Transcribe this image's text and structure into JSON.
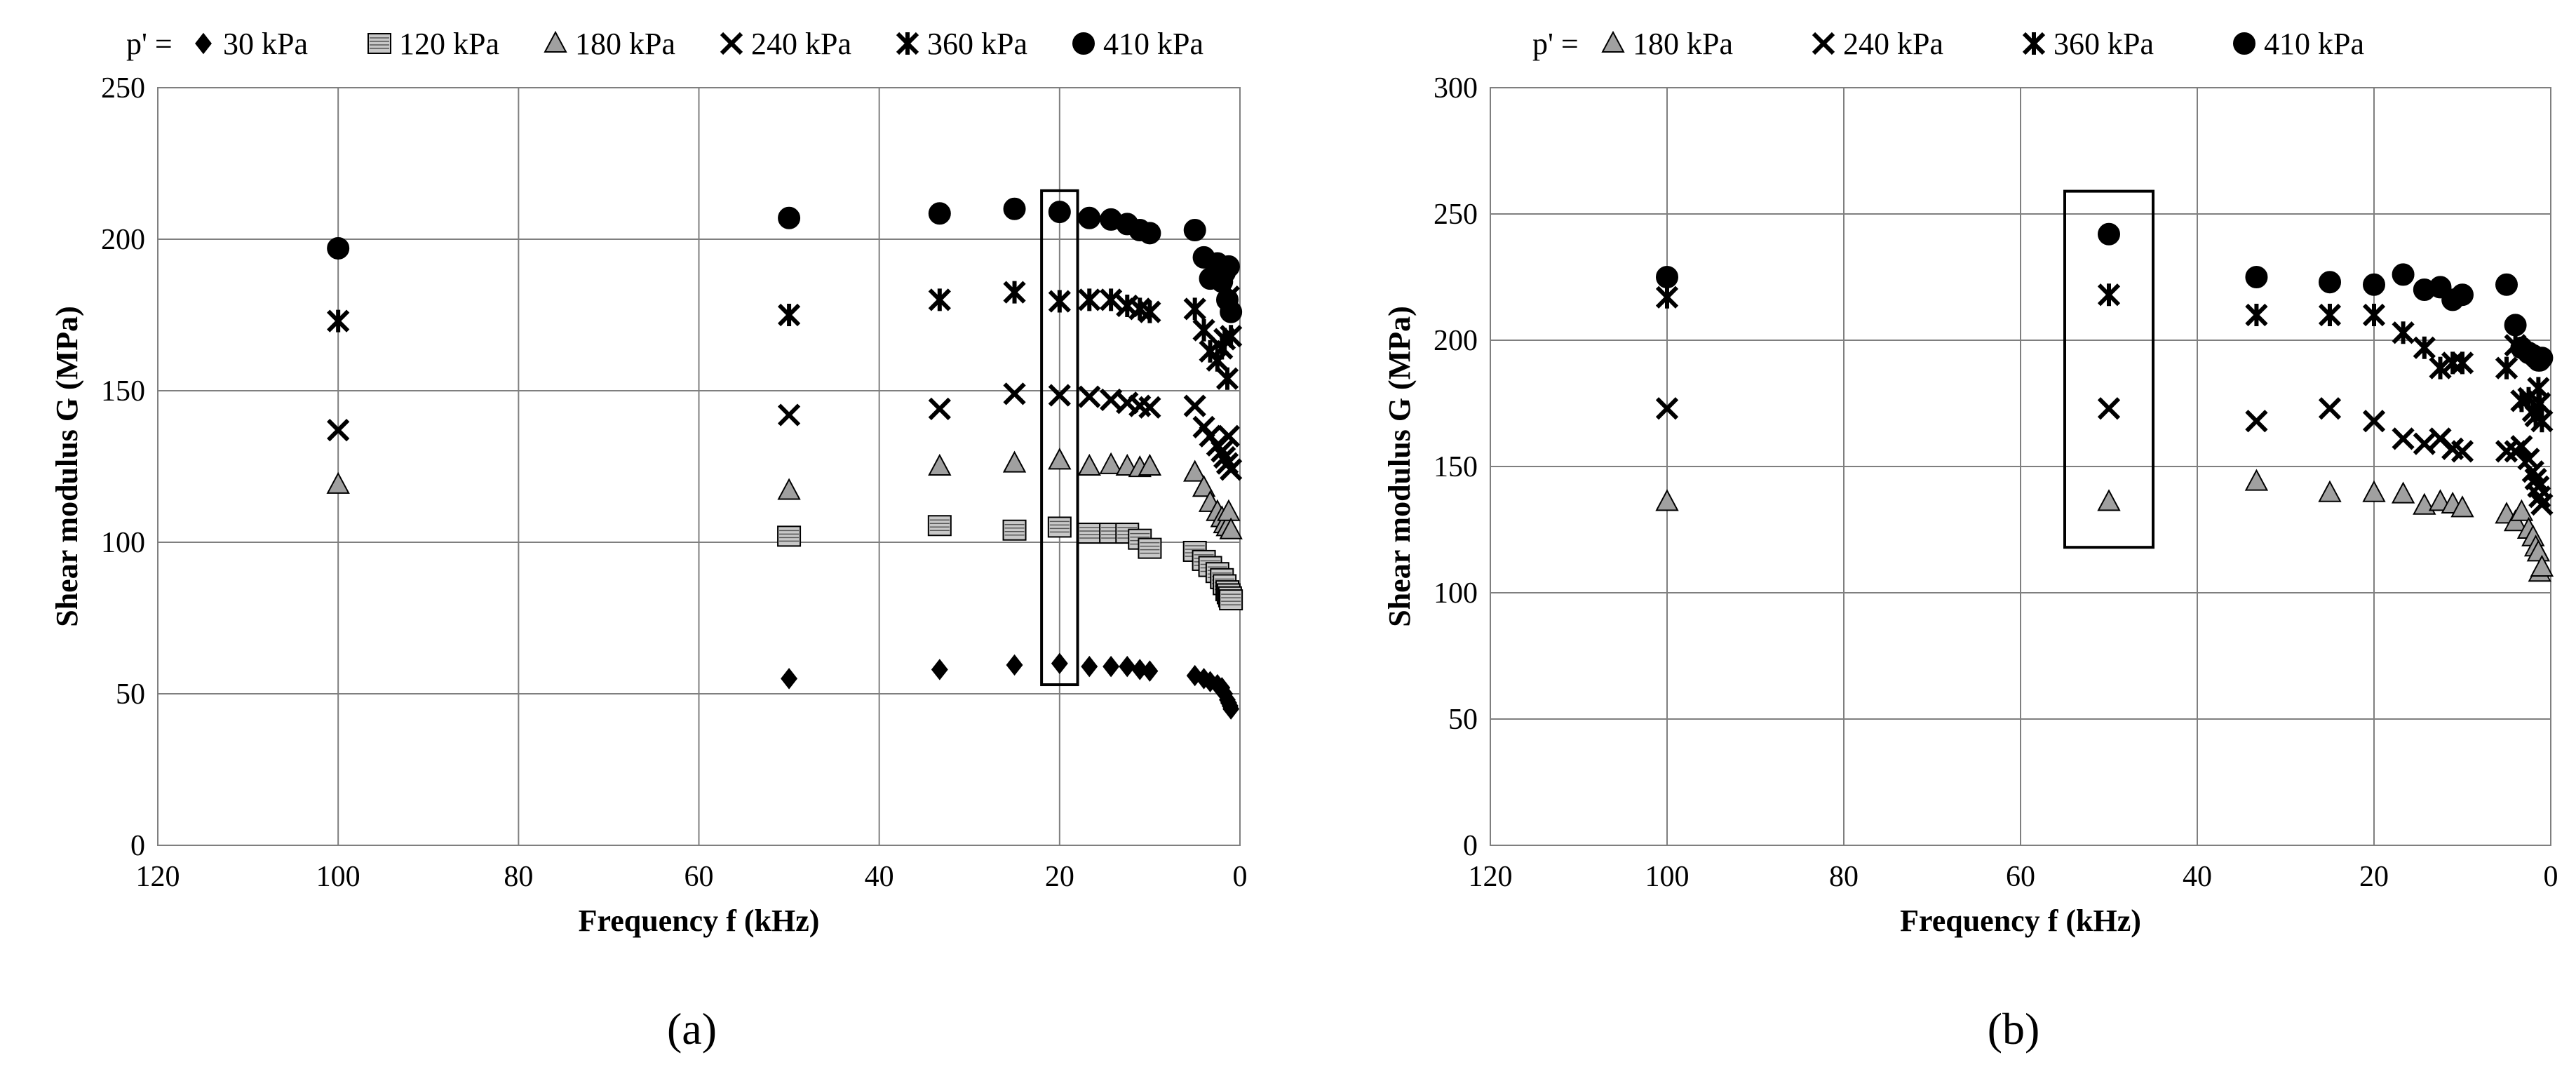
{
  "chart_data": [
    {
      "type": "scatter",
      "panel_label": "(a)",
      "legend_prefix": "p' =",
      "xlabel": "Frequency f (kHz)",
      "ylabel": "Shear modulus G (MPa)",
      "xlim": [
        120,
        0
      ],
      "ylim": [
        0,
        250
      ],
      "x_reversed": true,
      "xticks": [
        120,
        100,
        80,
        60,
        40,
        20,
        0
      ],
      "yticks": [
        0,
        50,
        100,
        150,
        200,
        250
      ],
      "grid": true,
      "legend_position": "top",
      "highlight_box_x": [
        22,
        18
      ],
      "highlight_box_y": [
        53,
        216
      ],
      "series": [
        {
          "name": "30 kPa",
          "marker": "diamond",
          "color": "#000000",
          "x": [
            50,
            33.3,
            25,
            20,
            16.7,
            14.3,
            12.5,
            11.1,
            10,
            5,
            4,
            3.3,
            2.5,
            2,
            1.7,
            1.4,
            1.25,
            1.1,
            1
          ],
          "y": [
            55,
            58,
            59.5,
            60,
            59,
            59,
            59,
            58,
            57.5,
            56,
            55,
            54,
            53,
            52,
            50,
            48,
            47,
            46,
            45
          ]
        },
        {
          "name": "120 kPa",
          "marker": "square",
          "color": "#c8c8c8",
          "x": [
            50,
            33.3,
            25,
            20,
            16.7,
            14.3,
            12.5,
            11.1,
            10,
            5,
            4,
            3.3,
            2.5,
            2,
            1.7,
            1.4,
            1.25,
            1.1,
            1
          ],
          "y": [
            102,
            105.5,
            104,
            105,
            103,
            103,
            103,
            101,
            98,
            97,
            94,
            92,
            90,
            88,
            86,
            84,
            83,
            82,
            81
          ]
        },
        {
          "name": "180 kPa",
          "marker": "triangle",
          "color": "#a0a0a0",
          "x": [
            100,
            50,
            33.3,
            25,
            20,
            16.7,
            14.3,
            12.5,
            11.1,
            10,
            5,
            4,
            3.3,
            2.5,
            2,
            1.7,
            1.4,
            1.25,
            1
          ],
          "y": [
            119,
            117,
            125,
            126,
            127,
            125,
            125.5,
            125,
            124.5,
            125,
            123,
            118,
            113,
            110,
            108,
            106,
            105,
            110,
            104
          ]
        },
        {
          "name": "240 kPa",
          "marker": "x",
          "color": "#000000",
          "x": [
            100,
            50,
            33.3,
            25,
            20,
            16.7,
            14.3,
            12.5,
            11.1,
            10,
            5,
            4,
            3.3,
            2.5,
            2,
            1.7,
            1.4,
            1.25,
            1
          ],
          "y": [
            137,
            142,
            144,
            149,
            148.5,
            148,
            147,
            146,
            145,
            144.5,
            145,
            138,
            135,
            132,
            130,
            128,
            126,
            135,
            124
          ]
        },
        {
          "name": "360 kPa",
          "marker": "asterisk",
          "color": "#000000",
          "x": [
            100,
            50,
            33.3,
            25,
            20,
            16.7,
            14.3,
            12.5,
            11.1,
            10,
            5,
            4,
            3.3,
            2.5,
            2,
            1.7,
            1.4,
            1.25,
            1
          ],
          "y": [
            173,
            175,
            180,
            182.5,
            179.5,
            180,
            180,
            178,
            177,
            176,
            177,
            170,
            163,
            160,
            164,
            167,
            154,
            181,
            168
          ]
        },
        {
          "name": "410 kPa",
          "marker": "circle",
          "color": "#000000",
          "x": [
            100,
            50,
            33.3,
            25,
            20,
            16.7,
            14.3,
            12.5,
            11.1,
            10,
            5,
            4,
            3.3,
            2.5,
            2,
            1.7,
            1.4,
            1.25,
            1
          ],
          "y": [
            197,
            207,
            208.5,
            210,
            209,
            207,
            206.5,
            205,
            203,
            202,
            203,
            194,
            187,
            192,
            186,
            189,
            180,
            191,
            176
          ]
        }
      ]
    },
    {
      "type": "scatter",
      "panel_label": "(b)",
      "legend_prefix": "p' =",
      "xlabel": "Frequency f (kHz)",
      "ylabel": "Shear modulus G (MPa)",
      "xlim": [
        120,
        0
      ],
      "ylim": [
        0,
        300
      ],
      "x_reversed": true,
      "xticks": [
        120,
        100,
        80,
        60,
        40,
        20,
        0
      ],
      "yticks": [
        0,
        50,
        100,
        150,
        200,
        250,
        300
      ],
      "grid": true,
      "legend_position": "top",
      "highlight_box_x": [
        55,
        45
      ],
      "highlight_box_y": [
        118,
        259
      ],
      "series": [
        {
          "name": "180 kPa",
          "marker": "triangle",
          "color": "#a0a0a0",
          "x": [
            100,
            50,
            33.3,
            25,
            20,
            16.7,
            14.3,
            12.5,
            11.1,
            10,
            5,
            4,
            3.3,
            2.5,
            2,
            1.7,
            1.4,
            1.25,
            1
          ],
          "y": [
            136,
            136,
            144,
            139.5,
            139.5,
            139,
            134.5,
            136,
            135,
            133.5,
            131,
            128,
            132,
            125,
            122,
            118,
            116,
            108,
            110
          ]
        },
        {
          "name": "240 kPa",
          "marker": "x",
          "color": "#000000",
          "x": [
            100,
            50,
            33.3,
            25,
            20,
            16.7,
            14.3,
            12.5,
            11.1,
            10,
            5,
            4,
            3.3,
            2.5,
            2,
            1.7,
            1.4,
            1.25,
            1
          ],
          "y": [
            173,
            173,
            168,
            173,
            168,
            161,
            159,
            161,
            157,
            156,
            156,
            156,
            158,
            153,
            148,
            145,
            142,
            138,
            135
          ]
        },
        {
          "name": "360 kPa",
          "marker": "asterisk",
          "color": "#000000",
          "x": [
            100,
            50,
            33.3,
            25,
            20,
            16.7,
            14.3,
            12.5,
            11.1,
            10,
            5,
            4,
            3.3,
            2.5,
            2,
            1.7,
            1.4,
            1.25,
            1
          ],
          "y": [
            217,
            218,
            210,
            210,
            210,
            203,
            197,
            189,
            191,
            191,
            189,
            198,
            176,
            177,
            172,
            170,
            181,
            175,
            168
          ]
        },
        {
          "name": "410 kPa",
          "marker": "circle",
          "color": "#000000",
          "x": [
            100,
            50,
            33.3,
            25,
            20,
            16.7,
            14.3,
            12.5,
            11.1,
            10,
            5,
            4,
            3.3,
            2.5,
            2,
            1.7,
            1.4,
            1.25,
            1
          ],
          "y": [
            225,
            242,
            225,
            223,
            222,
            226,
            220,
            221,
            216,
            218,
            222,
            206,
            197,
            195,
            194,
            193,
            192,
            192,
            193
          ]
        }
      ]
    }
  ]
}
